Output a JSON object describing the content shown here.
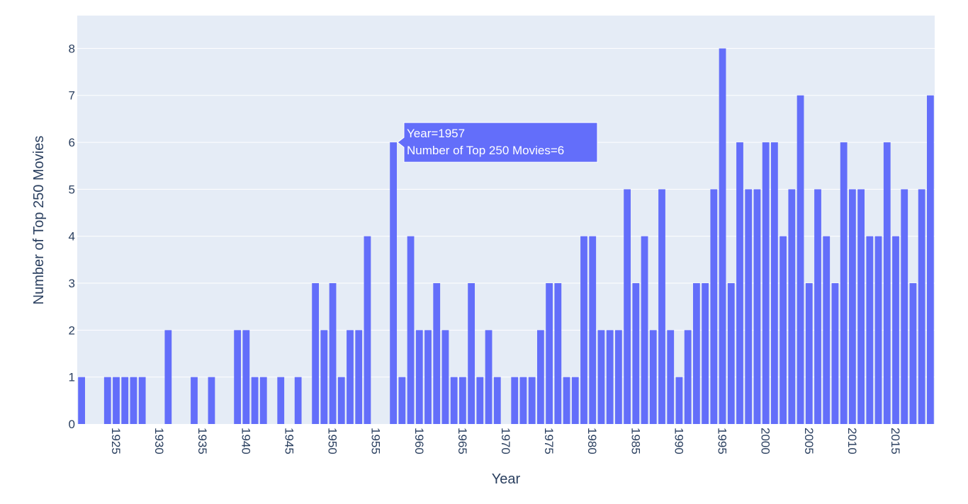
{
  "chart_data": {
    "type": "bar",
    "title": "",
    "xlabel": "Year",
    "ylabel": "Number of Top 250 Movies",
    "series_name": "",
    "colors": {
      "bar": "#636efa",
      "plot_bg": "#e5ecf6",
      "grid": "#ffffff",
      "text": "#2a3f5f"
    },
    "grid": true,
    "ylim": [
      0,
      8.7
    ],
    "xlim": [
      1920.5,
      2019.5
    ],
    "y_ticks": [
      0,
      1,
      2,
      3,
      4,
      5,
      6,
      7,
      8
    ],
    "x_ticks": [
      1925,
      1930,
      1935,
      1940,
      1945,
      1950,
      1955,
      1960,
      1965,
      1970,
      1975,
      1980,
      1985,
      1990,
      1995,
      2000,
      2005,
      2010,
      2015
    ],
    "x_tick_rotation_deg": 90,
    "x": [
      1921,
      1924,
      1925,
      1926,
      1927,
      1928,
      1931,
      1934,
      1936,
      1939,
      1940,
      1941,
      1942,
      1944,
      1946,
      1948,
      1949,
      1950,
      1951,
      1952,
      1953,
      1954,
      1957,
      1958,
      1959,
      1960,
      1961,
      1962,
      1963,
      1964,
      1965,
      1966,
      1967,
      1968,
      1969,
      1971,
      1972,
      1973,
      1974,
      1975,
      1976,
      1977,
      1978,
      1979,
      1980,
      1981,
      1982,
      1983,
      1984,
      1985,
      1986,
      1987,
      1988,
      1989,
      1990,
      1991,
      1992,
      1993,
      1994,
      1995,
      1996,
      1997,
      1998,
      1999,
      2000,
      2001,
      2002,
      2003,
      2004,
      2005,
      2006,
      2007,
      2008,
      2009,
      2010,
      2011,
      2012,
      2013,
      2014,
      2015,
      2016,
      2017,
      2018,
      2019
    ],
    "values": [
      1,
      1,
      1,
      1,
      1,
      1,
      2,
      1,
      1,
      2,
      2,
      1,
      1,
      1,
      1,
      3,
      2,
      3,
      1,
      2,
      2,
      4,
      6,
      1,
      4,
      2,
      2,
      3,
      2,
      1,
      1,
      3,
      1,
      2,
      1,
      1,
      1,
      1,
      2,
      3,
      3,
      1,
      1,
      4,
      4,
      2,
      2,
      2,
      5,
      3,
      4,
      2,
      5,
      2,
      1,
      2,
      3,
      3,
      5,
      8,
      3,
      6,
      5,
      5,
      6,
      6,
      4,
      5,
      7,
      3,
      5,
      4,
      3,
      6,
      5,
      5,
      4,
      4,
      6,
      4,
      5,
      3,
      5,
      7
    ],
    "hover": {
      "year": 1957,
      "lines": [
        "Year=1957",
        "Number of Top 250 Movies=6"
      ]
    }
  }
}
